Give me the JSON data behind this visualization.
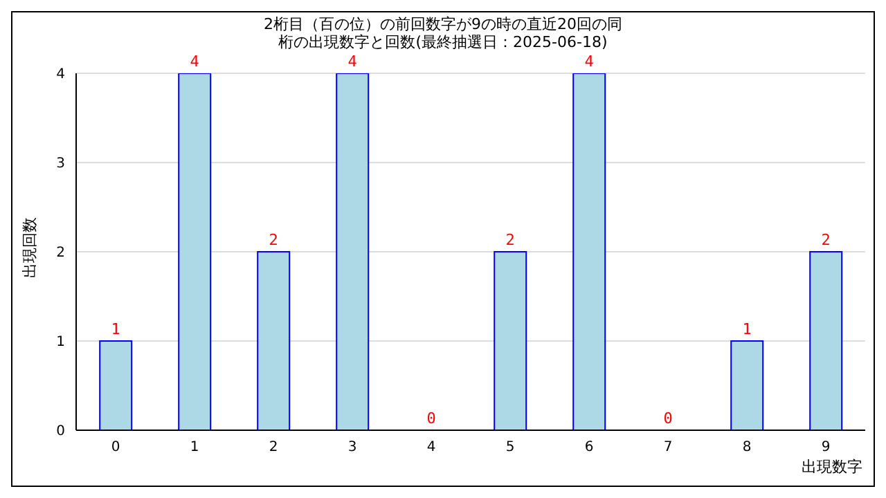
{
  "chart_data": {
    "type": "bar",
    "title": "2桁目（百の位）の前回数字が9の時の直近20回の同桁の出現数字と回数(最終抽選日：2025-06-18)",
    "xlabel": "出現数字",
    "ylabel": "出現回数",
    "categories": [
      "0",
      "1",
      "2",
      "3",
      "4",
      "5",
      "6",
      "7",
      "8",
      "9"
    ],
    "values": [
      1,
      4,
      2,
      4,
      0,
      2,
      4,
      0,
      1,
      2
    ],
    "color": "#add8e6",
    "ylim": [
      0,
      4
    ],
    "yticks": [
      0,
      1,
      2,
      3,
      4
    ],
    "grid": "y",
    "data_labels": true
  }
}
